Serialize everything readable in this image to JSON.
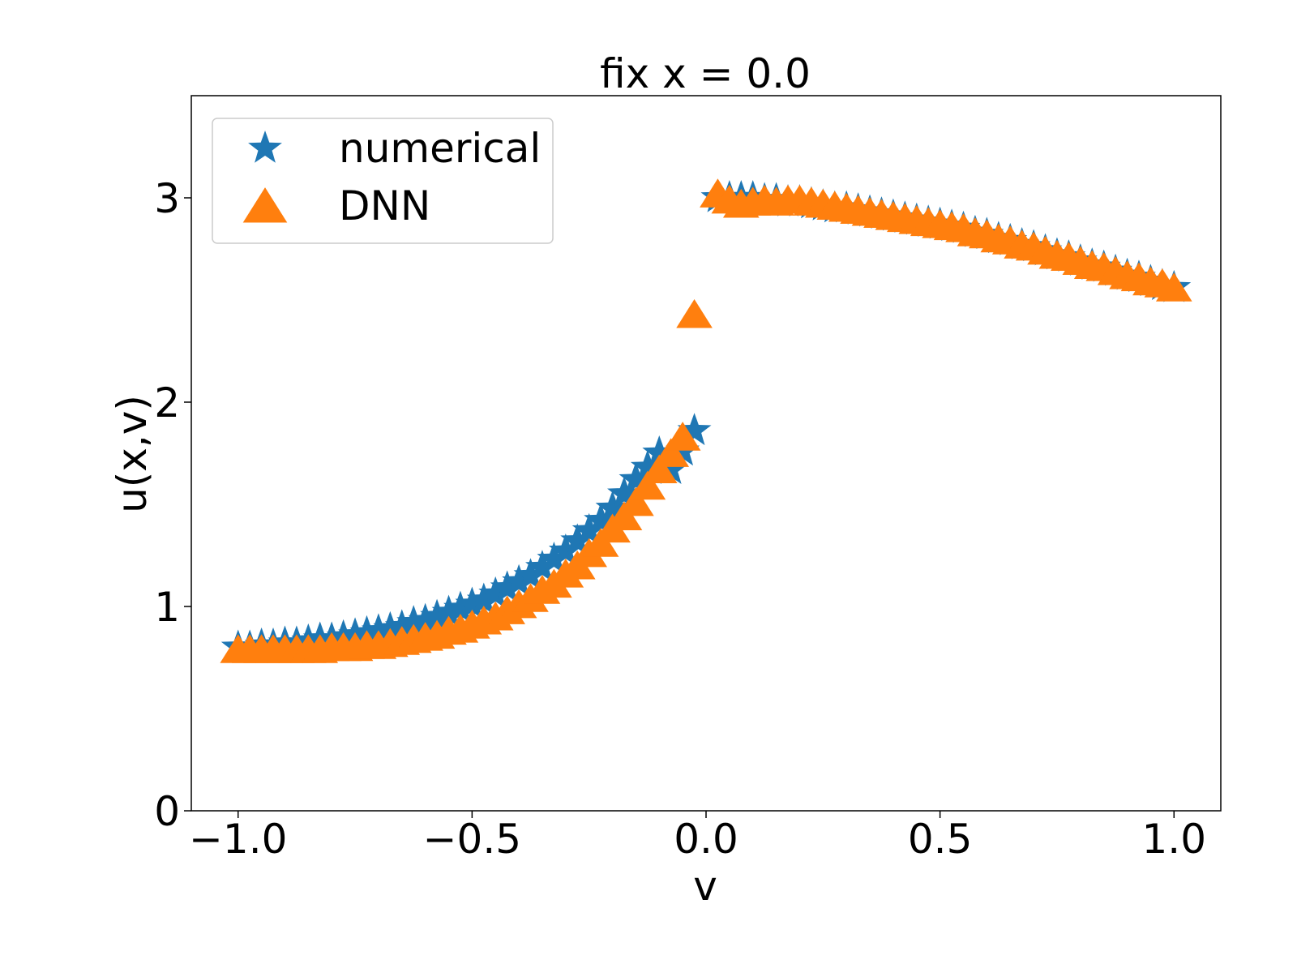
{
  "chart_data": {
    "type": "scatter",
    "title": "fix x = 0.0",
    "xlabel": "v",
    "ylabel": "u(x,v)",
    "xlim": [
      -1.1,
      1.1
    ],
    "ylim": [
      0,
      3.5
    ],
    "xticks": [
      -1.0,
      -0.5,
      0.0,
      0.5,
      1.0
    ],
    "xtick_labels": [
      "−1.0",
      "−0.5",
      "0.0",
      "0.5",
      "1.0"
    ],
    "yticks": [
      0,
      1,
      2,
      3
    ],
    "ytick_labels": [
      "0",
      "1",
      "2",
      "3"
    ],
    "grid": false,
    "legend_position": "upper-left",
    "series": [
      {
        "name": "numerical",
        "marker": "star",
        "color": "#1f77b4",
        "x": [
          -1.0,
          -0.975,
          -0.95,
          -0.925,
          -0.9,
          -0.875,
          -0.85,
          -0.825,
          -0.8,
          -0.775,
          -0.75,
          -0.725,
          -0.7,
          -0.675,
          -0.65,
          -0.625,
          -0.6,
          -0.575,
          -0.55,
          -0.525,
          -0.5,
          -0.475,
          -0.45,
          -0.425,
          -0.4,
          -0.375,
          -0.35,
          -0.325,
          -0.3,
          -0.275,
          -0.25,
          -0.225,
          -0.2,
          -0.175,
          -0.15,
          -0.125,
          -0.1,
          -0.075,
          -0.05,
          -0.025,
          0.025,
          0.05,
          0.075,
          0.1,
          0.125,
          0.15,
          0.175,
          0.2,
          0.225,
          0.25,
          0.275,
          0.3,
          0.325,
          0.35,
          0.375,
          0.4,
          0.425,
          0.45,
          0.475,
          0.5,
          0.525,
          0.55,
          0.575,
          0.6,
          0.625,
          0.65,
          0.675,
          0.7,
          0.725,
          0.75,
          0.775,
          0.8,
          0.825,
          0.85,
          0.875,
          0.9,
          0.925,
          0.95,
          0.975,
          1.0
        ],
        "y": [
          0.8,
          0.8,
          0.81,
          0.81,
          0.82,
          0.82,
          0.83,
          0.84,
          0.84,
          0.85,
          0.86,
          0.87,
          0.88,
          0.89,
          0.9,
          0.92,
          0.93,
          0.95,
          0.97,
          0.99,
          1.01,
          1.03,
          1.06,
          1.09,
          1.12,
          1.15,
          1.19,
          1.23,
          1.27,
          1.32,
          1.37,
          1.42,
          1.48,
          1.55,
          1.62,
          1.68,
          1.75,
          1.67,
          1.76,
          1.86,
          3.0,
          3.0,
          3.0,
          3.0,
          2.99,
          2.99,
          2.98,
          2.98,
          2.97,
          2.96,
          2.95,
          2.95,
          2.94,
          2.93,
          2.92,
          2.91,
          2.9,
          2.89,
          2.88,
          2.87,
          2.86,
          2.85,
          2.83,
          2.82,
          2.8,
          2.79,
          2.77,
          2.76,
          2.74,
          2.72,
          2.71,
          2.69,
          2.67,
          2.66,
          2.64,
          2.62,
          2.61,
          2.59,
          2.57,
          2.56
        ]
      },
      {
        "name": "DNN",
        "marker": "triangle",
        "color": "#ff7f0e",
        "x": [
          -1.0,
          -0.975,
          -0.95,
          -0.925,
          -0.9,
          -0.875,
          -0.85,
          -0.825,
          -0.8,
          -0.775,
          -0.75,
          -0.725,
          -0.7,
          -0.675,
          -0.65,
          -0.625,
          -0.6,
          -0.575,
          -0.55,
          -0.525,
          -0.5,
          -0.475,
          -0.45,
          -0.425,
          -0.4,
          -0.375,
          -0.35,
          -0.325,
          -0.3,
          -0.275,
          -0.25,
          -0.225,
          -0.2,
          -0.175,
          -0.15,
          -0.125,
          -0.1,
          -0.075,
          -0.05,
          -0.025,
          0.025,
          0.05,
          0.075,
          0.1,
          0.125,
          0.15,
          0.175,
          0.2,
          0.225,
          0.25,
          0.275,
          0.3,
          0.325,
          0.35,
          0.375,
          0.4,
          0.425,
          0.45,
          0.475,
          0.5,
          0.525,
          0.55,
          0.575,
          0.6,
          0.625,
          0.65,
          0.675,
          0.7,
          0.725,
          0.75,
          0.775,
          0.8,
          0.825,
          0.85,
          0.875,
          0.9,
          0.925,
          0.95,
          0.975,
          1.0
        ],
        "y": [
          0.78,
          0.78,
          0.78,
          0.78,
          0.78,
          0.78,
          0.78,
          0.78,
          0.79,
          0.79,
          0.79,
          0.8,
          0.8,
          0.81,
          0.82,
          0.83,
          0.84,
          0.85,
          0.87,
          0.88,
          0.9,
          0.92,
          0.94,
          0.97,
          1.0,
          1.03,
          1.07,
          1.1,
          1.15,
          1.19,
          1.25,
          1.3,
          1.37,
          1.43,
          1.5,
          1.58,
          1.66,
          1.74,
          1.82,
          2.42,
          3.01,
          2.98,
          2.96,
          2.97,
          2.98,
          2.97,
          2.98,
          2.98,
          2.97,
          2.96,
          2.95,
          2.94,
          2.93,
          2.92,
          2.91,
          2.9,
          2.89,
          2.88,
          2.87,
          2.86,
          2.85,
          2.84,
          2.82,
          2.81,
          2.79,
          2.78,
          2.76,
          2.75,
          2.73,
          2.71,
          2.7,
          2.68,
          2.66,
          2.65,
          2.63,
          2.61,
          2.6,
          2.58,
          2.57,
          2.55
        ]
      }
    ]
  }
}
